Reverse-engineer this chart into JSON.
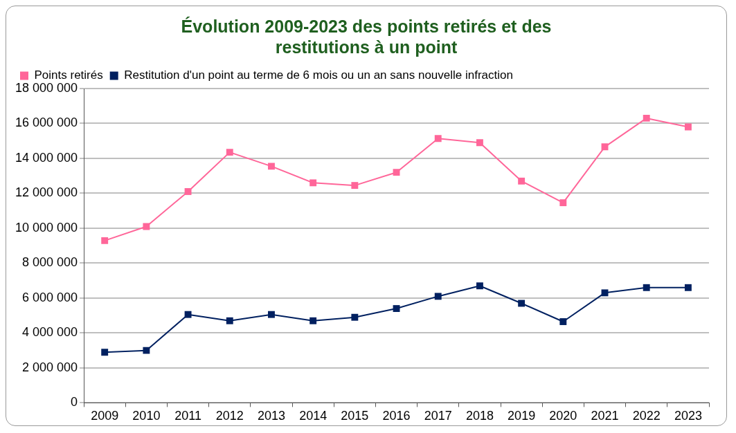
{
  "chart_data": {
    "type": "line",
    "title": "Évolution 2009-2023 des points retirés et des restitutions à un point",
    "categories": [
      "2009",
      "2010",
      "2011",
      "2012",
      "2013",
      "2014",
      "2015",
      "2016",
      "2017",
      "2018",
      "2019",
      "2020",
      "2021",
      "2022",
      "2023"
    ],
    "series": [
      {
        "name": "Points retirés",
        "color": "#ff6699",
        "values": [
          9290000,
          10100000,
          12100000,
          14350000,
          13550000,
          12600000,
          12450000,
          13200000,
          15140000,
          14900000,
          12700000,
          11460000,
          14660000,
          16300000,
          15800000
        ]
      },
      {
        "name": "Restitution d'un point au terme de 6 mois ou un an sans nouvelle infraction",
        "color": "#002060",
        "values": [
          2900000,
          3000000,
          5060000,
          4700000,
          5060000,
          4700000,
          4900000,
          5400000,
          6100000,
          6700000,
          5700000,
          4650000,
          6300000,
          6600000,
          6600000
        ]
      }
    ],
    "ylim": [
      0,
      18000000
    ],
    "yticks": [
      0,
      {
        "value": 2000000,
        "label": "2 000 000"
      },
      {
        "value": 4000000,
        "label": "4 000 000"
      },
      {
        "value": 6000000,
        "label": "6 000 000"
      },
      {
        "value": 8000000,
        "label": "8 000 000"
      },
      {
        "value": 10000000,
        "label": "10 000 000"
      },
      {
        "value": 12000000,
        "label": "12 000 000"
      },
      {
        "value": 14000000,
        "label": "14 000 000"
      },
      {
        "value": 16000000,
        "label": "16 000 000"
      },
      {
        "value": 18000000,
        "label": "18 000 000"
      }
    ],
    "grid": "y",
    "legend": "top left",
    "marker": "square",
    "line_style": "solid"
  }
}
